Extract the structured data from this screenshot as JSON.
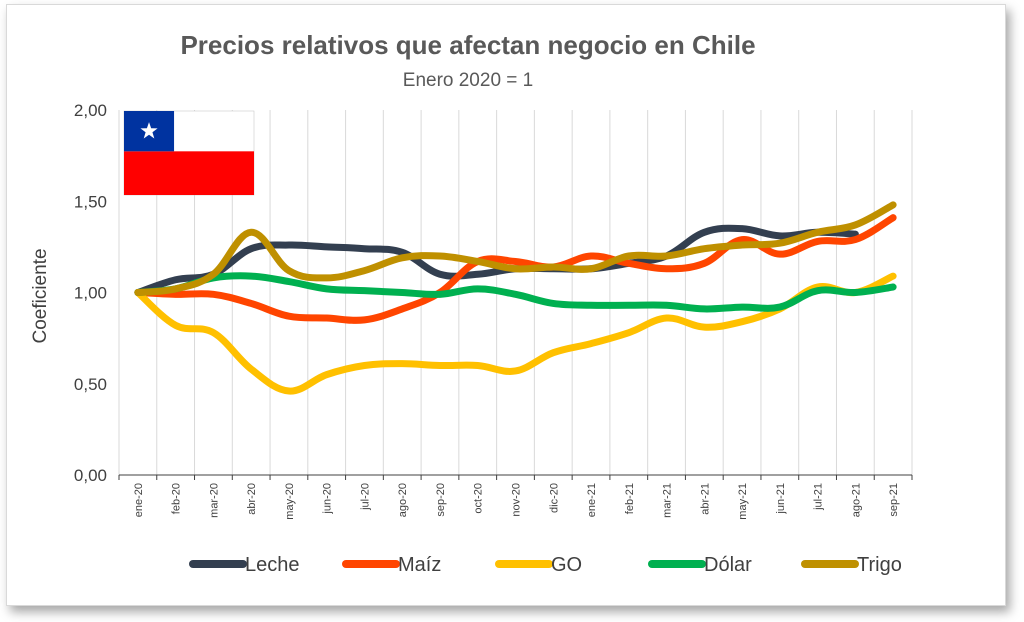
{
  "chart_data": {
    "type": "line",
    "title": "Precios relativos que afectan negocio en Chile",
    "subtitle": "Enero 2020 = 1",
    "xlabel": "",
    "ylabel": "Coeficiente",
    "ylim": [
      0,
      2
    ],
    "yticks": [
      "0,00",
      "0,50",
      "1,00",
      "1,50",
      "2,00"
    ],
    "ytick_values": [
      0,
      0.5,
      1,
      1.5,
      2
    ],
    "grid": "vertical",
    "legend_position": "bottom",
    "categories": [
      "ene-20",
      "feb-20",
      "mar-20",
      "abr-20",
      "may-20",
      "jun-20",
      "jul-20",
      "ago-20",
      "sep-20",
      "oct-20",
      "nov-20",
      "dic-20",
      "ene-21",
      "feb-21",
      "mar-21",
      "abr-21",
      "may-21",
      "jun-21",
      "jul-21",
      "ago-21",
      "sep-21"
    ],
    "series": [
      {
        "name": "Leche",
        "color": "#333f50",
        "values": [
          1.0,
          1.07,
          1.1,
          1.24,
          1.26,
          1.25,
          1.24,
          1.22,
          1.1,
          1.1,
          1.13,
          1.13,
          1.13,
          1.16,
          1.2,
          1.33,
          1.35,
          1.31,
          1.33,
          1.32,
          null
        ]
      },
      {
        "name": "Maíz",
        "color": "#ff4500",
        "values": [
          1.0,
          0.99,
          0.99,
          0.94,
          0.87,
          0.86,
          0.85,
          0.91,
          1.0,
          1.17,
          1.17,
          1.14,
          1.2,
          1.16,
          1.13,
          1.16,
          1.29,
          1.21,
          1.28,
          1.29,
          1.41
        ]
      },
      {
        "name": "GO",
        "color": "#ffc000",
        "values": [
          1.0,
          0.82,
          0.78,
          0.58,
          0.46,
          0.55,
          0.6,
          0.61,
          0.6,
          0.6,
          0.57,
          0.67,
          0.72,
          0.78,
          0.86,
          0.81,
          0.84,
          0.91,
          1.03,
          1.0,
          1.09
        ]
      },
      {
        "name": "Dólar",
        "color": "#00b050",
        "values": [
          1.0,
          1.02,
          1.08,
          1.09,
          1.06,
          1.02,
          1.01,
          1.0,
          0.99,
          1.02,
          0.99,
          0.94,
          0.93,
          0.93,
          0.93,
          0.91,
          0.92,
          0.92,
          1.01,
          1.0,
          1.03
        ]
      },
      {
        "name": "Trigo",
        "color": "#bf9000",
        "values": [
          1.0,
          1.02,
          1.1,
          1.33,
          1.12,
          1.08,
          1.12,
          1.19,
          1.2,
          1.17,
          1.13,
          1.14,
          1.13,
          1.2,
          1.2,
          1.24,
          1.26,
          1.27,
          1.33,
          1.37,
          1.48
        ]
      }
    ]
  },
  "flag": {
    "name": "chile-flag",
    "colors": {
      "blue": "#0033a0",
      "white": "#ffffff",
      "red": "#ff0000"
    }
  }
}
